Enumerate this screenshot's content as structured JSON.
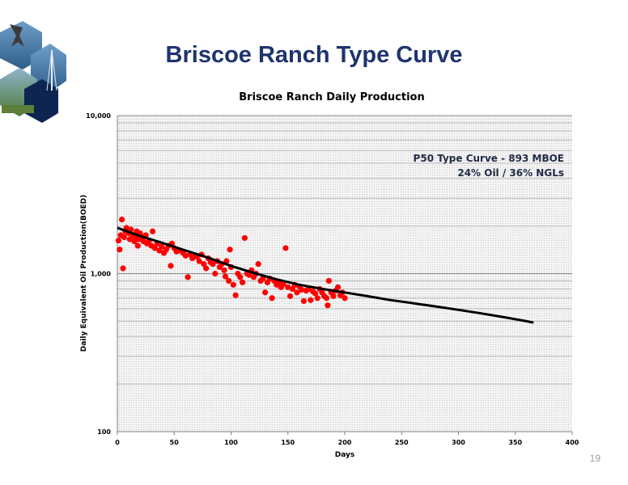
{
  "slide": {
    "title": "Briscoe Ranch Type Curve",
    "page_number": "19"
  },
  "colors": {
    "title": "#1f3470",
    "points": "#ff0000",
    "curve": "#000000",
    "plot_background": "#ececec"
  },
  "logo": {
    "icon": "hexagon-photo-collage-logo"
  },
  "chart_data": {
    "type": "scatter",
    "title": "Briscoe Ranch Daily Production",
    "xlabel": "Days",
    "ylabel": "Daily Equivalent Oil Production(BOED)",
    "xlim": [
      0,
      400
    ],
    "ylim": [
      100,
      10000
    ],
    "yscale": "log",
    "x_ticks": [
      0,
      50,
      100,
      150,
      200,
      250,
      300,
      350,
      400
    ],
    "y_ticks": [
      {
        "value": 100,
        "label": "100"
      },
      {
        "value": 1000,
        "label": "1,000"
      },
      {
        "value": 10000,
        "label": "10,000"
      }
    ],
    "grid": true,
    "annotations": [
      "P50 Type Curve - 893 MBOE",
      "24% Oil / 36% NGLs"
    ],
    "series": [
      {
        "type": "scatter",
        "points": [
          [
            1,
            1620
          ],
          [
            2,
            1420
          ],
          [
            3,
            1750
          ],
          [
            4,
            2200
          ],
          [
            5,
            1080
          ],
          [
            6,
            1700
          ],
          [
            7,
            1850
          ],
          [
            8,
            1950
          ],
          [
            10,
            1800
          ],
          [
            11,
            1650
          ],
          [
            12,
            1900
          ],
          [
            14,
            1750
          ],
          [
            15,
            1600
          ],
          [
            16,
            1700
          ],
          [
            17,
            1850
          ],
          [
            18,
            1500
          ],
          [
            19,
            1650
          ],
          [
            20,
            1800
          ],
          [
            22,
            1700
          ],
          [
            23,
            1600
          ],
          [
            25,
            1750
          ],
          [
            26,
            1550
          ],
          [
            28,
            1620
          ],
          [
            30,
            1500
          ],
          [
            31,
            1850
          ],
          [
            33,
            1450
          ],
          [
            35,
            1550
          ],
          [
            37,
            1400
          ],
          [
            39,
            1480
          ],
          [
            41,
            1350
          ],
          [
            43,
            1420
          ],
          [
            45,
            1500
          ],
          [
            47,
            1120
          ],
          [
            48,
            1550
          ],
          [
            50,
            1450
          ],
          [
            52,
            1380
          ],
          [
            55,
            1400
          ],
          [
            58,
            1350
          ],
          [
            60,
            1300
          ],
          [
            62,
            950
          ],
          [
            64,
            1320
          ],
          [
            66,
            1250
          ],
          [
            68,
            1300
          ],
          [
            70,
            1280
          ],
          [
            72,
            1200
          ],
          [
            74,
            1320
          ],
          [
            76,
            1150
          ],
          [
            78,
            1080
          ],
          [
            80,
            1250
          ],
          [
            82,
            1180
          ],
          [
            84,
            1150
          ],
          [
            86,
            1000
          ],
          [
            88,
            1200
          ],
          [
            90,
            1100
          ],
          [
            92,
            1150
          ],
          [
            94,
            1050
          ],
          [
            95,
            960
          ],
          [
            96,
            1200
          ],
          [
            98,
            900
          ],
          [
            99,
            1420
          ],
          [
            100,
            1100
          ],
          [
            102,
            850
          ],
          [
            104,
            730
          ],
          [
            106,
            1000
          ],
          [
            108,
            950
          ],
          [
            110,
            880
          ],
          [
            112,
            1680
          ],
          [
            114,
            1000
          ],
          [
            116,
            980
          ],
          [
            118,
            1050
          ],
          [
            120,
            950
          ],
          [
            122,
            1000
          ],
          [
            124,
            1150
          ],
          [
            126,
            900
          ],
          [
            128,
            930
          ],
          [
            130,
            760
          ],
          [
            132,
            880
          ],
          [
            134,
            930
          ],
          [
            136,
            700
          ],
          [
            138,
            900
          ],
          [
            140,
            850
          ],
          [
            142,
            880
          ],
          [
            144,
            820
          ],
          [
            146,
            860
          ],
          [
            148,
            1450
          ],
          [
            150,
            820
          ],
          [
            152,
            720
          ],
          [
            154,
            800
          ],
          [
            156,
            850
          ],
          [
            158,
            760
          ],
          [
            160,
            830
          ],
          [
            162,
            790
          ],
          [
            164,
            670
          ],
          [
            166,
            780
          ],
          [
            168,
            800
          ],
          [
            170,
            680
          ],
          [
            172,
            770
          ],
          [
            174,
            750
          ],
          [
            176,
            700
          ],
          [
            178,
            800
          ],
          [
            180,
            760
          ],
          [
            182,
            720
          ],
          [
            184,
            700
          ],
          [
            185,
            630
          ],
          [
            186,
            900
          ],
          [
            188,
            760
          ],
          [
            190,
            720
          ],
          [
            192,
            780
          ],
          [
            194,
            820
          ],
          [
            196,
            730
          ],
          [
            198,
            760
          ],
          [
            200,
            700
          ]
        ]
      },
      {
        "type": "line",
        "points": [
          [
            0,
            1950
          ],
          [
            20,
            1730
          ],
          [
            40,
            1560
          ],
          [
            60,
            1400
          ],
          [
            80,
            1260
          ],
          [
            100,
            1120
          ],
          [
            120,
            1010
          ],
          [
            140,
            920
          ],
          [
            160,
            850
          ],
          [
            180,
            800
          ],
          [
            200,
            760
          ],
          [
            220,
            720
          ],
          [
            240,
            680
          ],
          [
            260,
            650
          ],
          [
            280,
            620
          ],
          [
            300,
            590
          ],
          [
            320,
            560
          ],
          [
            340,
            530
          ],
          [
            360,
            500
          ],
          [
            366,
            490
          ]
        ]
      }
    ]
  }
}
